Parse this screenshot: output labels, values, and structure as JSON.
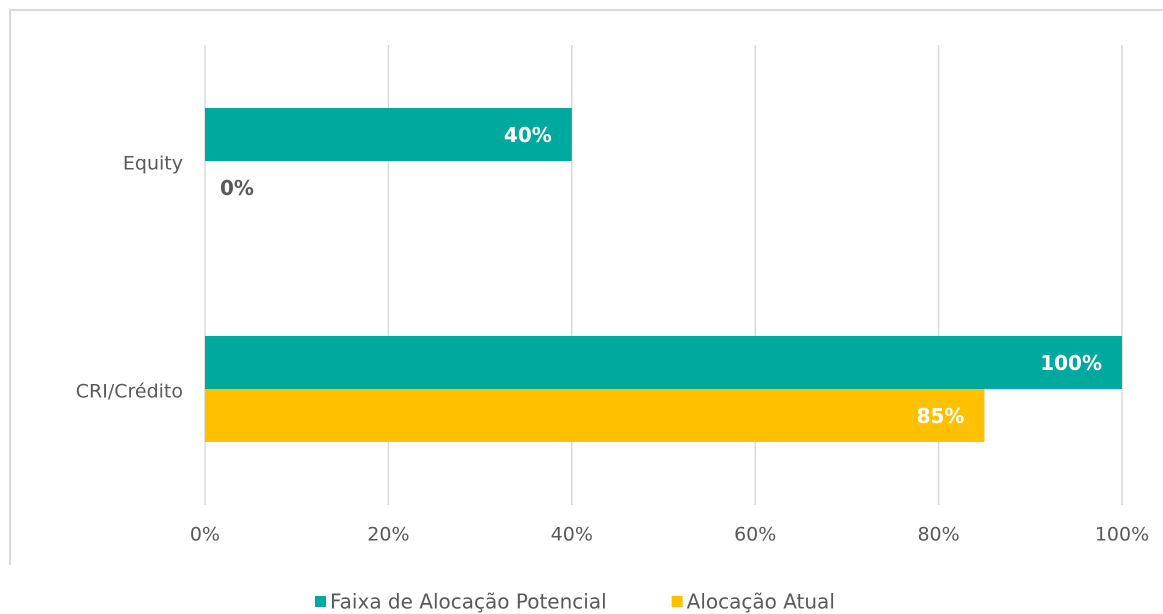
{
  "chart_data": {
    "type": "hbar",
    "categories": [
      "Equity",
      "CRI/Crédito"
    ],
    "series": [
      {
        "name": "Faixa de Alocação Potencial",
        "color": "#00a99d",
        "values": [
          40,
          100
        ],
        "value_labels": [
          "40%",
          "100%"
        ]
      },
      {
        "name": "Alocação Atual",
        "color": "#ffc000",
        "values": [
          0,
          85
        ],
        "value_labels": [
          "0%",
          "85%"
        ]
      }
    ],
    "xlim": [
      0,
      100
    ],
    "xticks": [
      {
        "value": 0,
        "label": "0%"
      },
      {
        "value": 20,
        "label": "20%"
      },
      {
        "value": 40,
        "label": "40%"
      },
      {
        "value": 60,
        "label": "60%"
      },
      {
        "value": 80,
        "label": "80%"
      },
      {
        "value": 100,
        "label": "100%"
      }
    ],
    "grid": true,
    "legend": "bottom"
  }
}
